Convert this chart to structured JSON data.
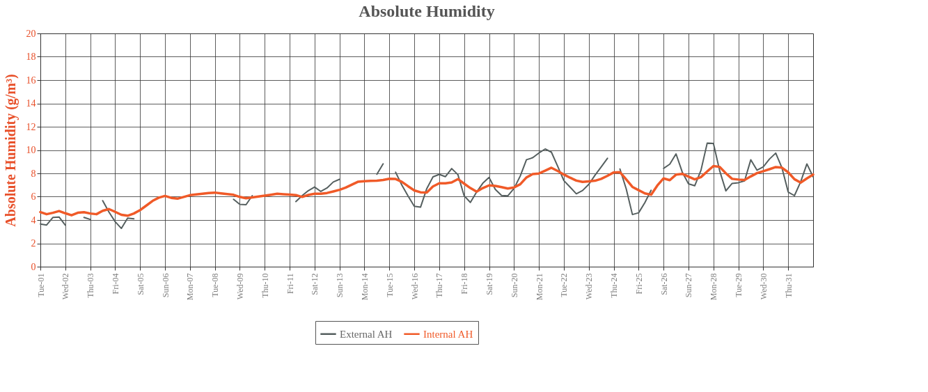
{
  "chart_data": {
    "type": "line",
    "title": "Absolute Humidity",
    "ylabel": "Absolute Humidity (g/m³)",
    "ylim": [
      0,
      20
    ],
    "yticks": [
      0,
      2,
      4,
      6,
      8,
      10,
      12,
      14,
      16,
      18,
      20
    ],
    "categories": [
      "Tue-01",
      null,
      null,
      null,
      "Wed-02",
      null,
      null,
      null,
      "Thu-03",
      null,
      null,
      null,
      "Fri-04",
      null,
      null,
      null,
      "Sat-05",
      null,
      null,
      null,
      "Sun-06",
      null,
      null,
      null,
      "Mon-07",
      null,
      null,
      null,
      "Tue-08",
      null,
      null,
      null,
      "Wed-09",
      null,
      null,
      null,
      "Thu-10",
      null,
      null,
      null,
      "Fri-11",
      null,
      null,
      null,
      "Sat-12",
      null,
      null,
      null,
      "Sun-13",
      null,
      null,
      null,
      "Mon-14",
      null,
      null,
      null,
      "Tue-15",
      null,
      null,
      null,
      "Wed-16",
      null,
      null,
      null,
      "Thu-17",
      null,
      null,
      null,
      "Fri-18",
      null,
      null,
      null,
      "Sat-19",
      null,
      null,
      null,
      "Sun-20",
      null,
      null,
      null,
      "Mon-21",
      null,
      null,
      null,
      "Tue-22",
      null,
      null,
      null,
      "Wed-23",
      null,
      null,
      null,
      "Thu-24",
      null,
      null,
      null,
      "Fri-25",
      null,
      null,
      null,
      "Sat-26",
      null,
      null,
      null,
      "Sun-27",
      null,
      null,
      null,
      "Mon-28",
      null,
      null,
      null,
      "Tue-29",
      null,
      null,
      null,
      "Wed-30",
      null,
      null,
      null,
      "Thu-31",
      null,
      null,
      null,
      null
    ],
    "grid": true,
    "legend": "bottom",
    "marker": "none",
    "line_style": "solid",
    "series": [
      {
        "name": "External AH",
        "color": "#555f5f",
        "values": [
          3.66,
          3.57,
          4.22,
          4.26,
          3.56,
          null,
          null,
          4.22,
          4.05,
          null,
          5.66,
          4.69,
          3.86,
          3.28,
          4.17,
          4.11,
          null,
          null,
          null,
          null,
          null,
          null,
          null,
          null,
          null,
          null,
          null,
          null,
          null,
          null,
          null,
          5.78,
          5.34,
          5.31,
          6.09,
          null,
          null,
          null,
          null,
          null,
          null,
          5.58,
          6.09,
          6.52,
          6.83,
          6.45,
          6.75,
          7.26,
          7.49,
          null,
          null,
          null,
          null,
          null,
          7.93,
          8.82,
          null,
          8.1,
          7.0,
          6.06,
          5.18,
          5.1,
          6.69,
          7.7,
          7.91,
          7.72,
          8.41,
          7.89,
          6.08,
          5.51,
          6.4,
          7.16,
          7.65,
          6.63,
          6.1,
          6.07,
          6.71,
          7.77,
          9.17,
          9.34,
          9.75,
          10.09,
          9.82,
          8.62,
          7.38,
          6.82,
          6.25,
          6.53,
          7.06,
          7.84,
          8.56,
          9.29,
          null,
          8.37,
          6.69,
          4.47,
          4.62,
          5.49,
          6.55,
          null,
          8.43,
          8.79,
          9.67,
          8.11,
          7.1,
          6.94,
          8.26,
          10.59,
          10.57,
          8.23,
          6.5,
          7.14,
          7.2,
          7.36,
          9.17,
          8.27,
          8.56,
          9.23,
          9.74,
          8.47,
          6.4,
          6.09,
          7.28,
          8.81,
          7.7
        ]
      },
      {
        "name": "Internal AH",
        "color": "#f05a28",
        "values": [
          4.68,
          4.5,
          4.62,
          4.77,
          4.58,
          4.41,
          4.62,
          4.67,
          4.56,
          4.5,
          4.79,
          4.94,
          4.7,
          4.45,
          4.37,
          4.56,
          4.85,
          5.24,
          5.64,
          5.92,
          6.07,
          5.9,
          5.83,
          5.98,
          6.13,
          6.19,
          6.26,
          6.32,
          6.35,
          6.28,
          6.22,
          6.16,
          5.98,
          5.87,
          5.94,
          6.01,
          6.09,
          6.17,
          6.25,
          6.21,
          6.18,
          6.14,
          5.98,
          6.15,
          6.25,
          6.25,
          6.32,
          6.45,
          6.59,
          6.78,
          7.04,
          7.29,
          7.33,
          7.36,
          7.38,
          7.43,
          7.54,
          7.52,
          7.28,
          6.9,
          6.54,
          6.38,
          6.36,
          6.88,
          7.15,
          7.15,
          7.22,
          7.51,
          7.12,
          6.74,
          6.43,
          6.74,
          6.97,
          6.92,
          6.82,
          6.7,
          6.79,
          7.07,
          7.65,
          7.94,
          7.99,
          8.23,
          8.48,
          8.21,
          7.9,
          7.63,
          7.38,
          7.27,
          7.32,
          7.37,
          7.53,
          7.79,
          8.08,
          8.1,
          7.49,
          6.84,
          6.56,
          6.28,
          6.17,
          6.96,
          7.57,
          7.42,
          7.89,
          7.96,
          7.73,
          7.49,
          7.68,
          8.16,
          8.63,
          8.56,
          8.0,
          7.53,
          7.47,
          7.43,
          7.74,
          8.02,
          8.19,
          8.36,
          8.54,
          8.49,
          8.09,
          7.5,
          7.21,
          7.57,
          7.9
        ]
      }
    ]
  }
}
